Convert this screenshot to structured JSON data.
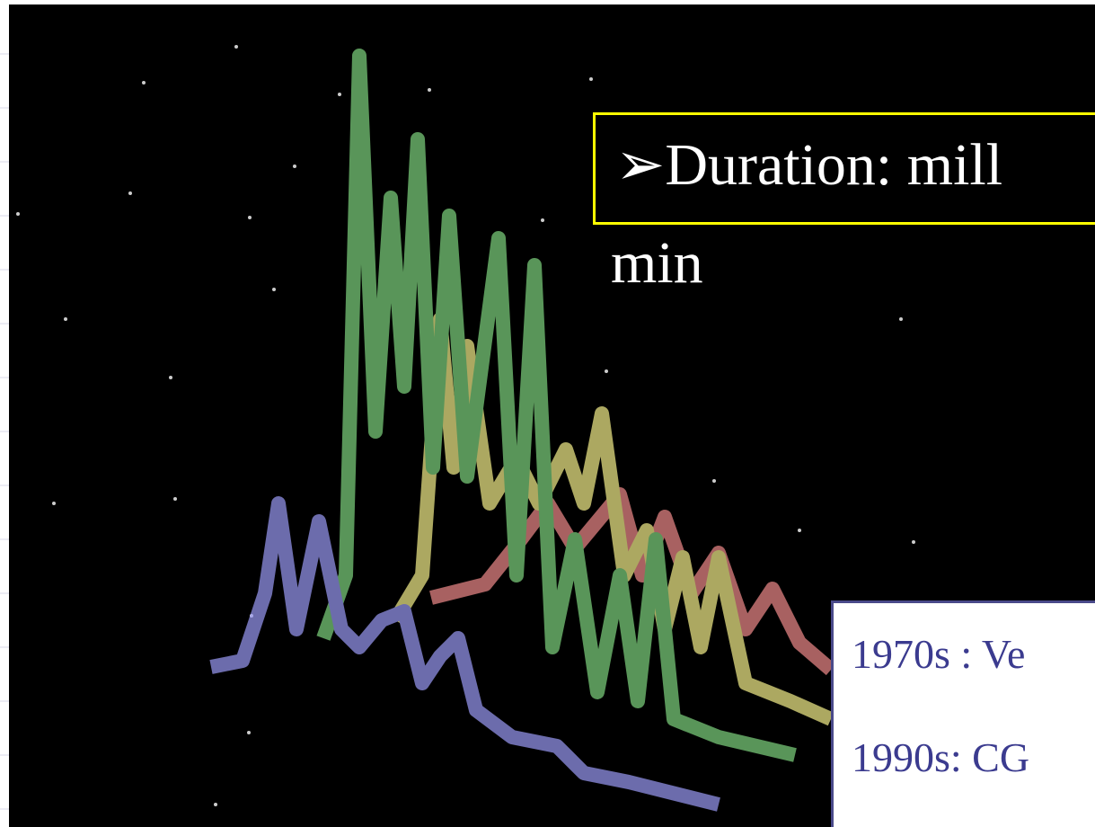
{
  "slide": {
    "bullet": "➢",
    "title_lines": [
      "Duration: mill",
      "min"
    ],
    "box_lines": [
      "1970s : Ve",
      "1990s: CG"
    ]
  }
}
